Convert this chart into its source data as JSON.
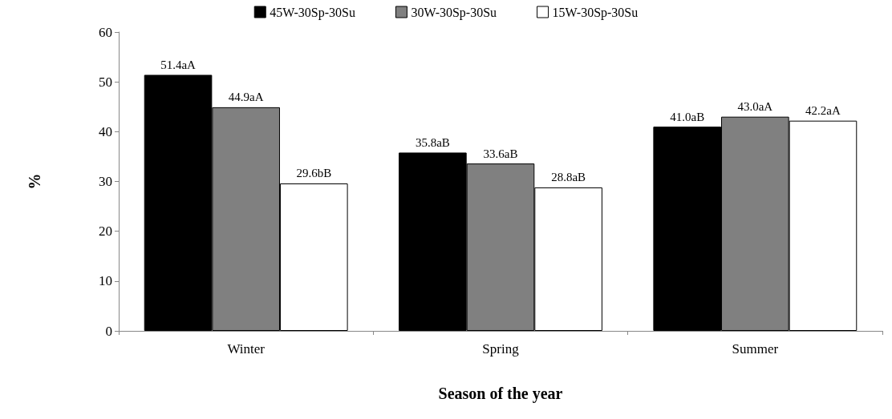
{
  "chart_data": {
    "type": "bar",
    "xlabel": "Season of the year",
    "ylabel": "%",
    "categories": [
      "Winter",
      "Spring",
      "Summer"
    ],
    "series": [
      {
        "name": "45W-30Sp-30Su",
        "color": "#000000",
        "values": [
          51.4,
          35.8,
          41.0
        ],
        "value_labels": [
          "51.4aA",
          "35.8aB",
          "41.0aB"
        ]
      },
      {
        "name": "30W-30Sp-30Su",
        "color": "#808080",
        "values": [
          44.9,
          33.6,
          43.0
        ],
        "value_labels": [
          "44.9aA",
          "33.6aB",
          "43.0aA"
        ]
      },
      {
        "name": "15W-30Sp-30Su",
        "color": "#ffffff",
        "values": [
          29.6,
          28.8,
          42.2
        ],
        "value_labels": [
          "29.6bB",
          "28.8aB",
          "42.2aA"
        ]
      }
    ],
    "ylim": [
      0,
      60
    ],
    "yticks": [
      0,
      10,
      20,
      30,
      40,
      50,
      60
    ],
    "grid": false,
    "legend": "top"
  }
}
